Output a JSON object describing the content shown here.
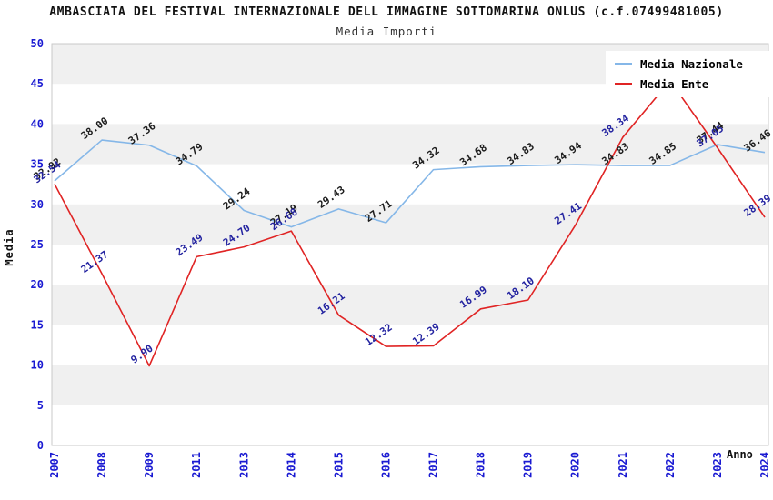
{
  "chart_data": {
    "type": "line",
    "title": "AMBASCIATA DEL FESTIVAL INTERNAZIONALE DELL IMMAGINE SOTTOMARINA ONLUS (c.f.07499481005)",
    "subtitle": "Media Importi",
    "xlabel": "Anno",
    "ylabel": "Media",
    "ylim": [
      0,
      50
    ],
    "y_ticks": [
      0,
      5,
      10,
      15,
      20,
      25,
      30,
      35,
      40,
      45,
      50
    ],
    "categories": [
      "2007",
      "2008",
      "2009",
      "2011",
      "2013",
      "2014",
      "2015",
      "2016",
      "2017",
      "2018",
      "2019",
      "2020",
      "2021",
      "2022",
      "2023",
      "2024"
    ],
    "series": [
      {
        "name": "Media Nazionale",
        "color": "#85b7e8",
        "label_color": "#1c1c1c",
        "values": [
          32.92,
          38.0,
          37.36,
          34.79,
          29.24,
          27.19,
          29.43,
          27.71,
          34.32,
          34.68,
          34.83,
          34.94,
          34.83,
          34.85,
          37.44,
          36.46
        ],
        "labels": [
          "32.92",
          "38.00",
          "37.36",
          "34.79",
          "29.24",
          "27.19",
          "29.43",
          "27.71",
          "34.32",
          "34.68",
          "34.83",
          "34.94",
          "34.83",
          "34.85",
          "37.44",
          "36.46"
        ]
      },
      {
        "name": "Media Ente",
        "color": "#e02424",
        "label_color": "#2323a0",
        "values": [
          32.54,
          21.37,
          9.9,
          23.49,
          24.7,
          26.68,
          16.21,
          12.32,
          12.39,
          16.99,
          18.1,
          27.41,
          38.34,
          45.4,
          37.05,
          28.39
        ],
        "labels": [
          "32.54",
          "21.37",
          "9.90",
          "23.49",
          "24.70",
          "26.68",
          "16.21",
          "12.32",
          "12.39",
          "16.99",
          "18.10",
          "27.41",
          "38.34",
          null,
          "37.05",
          "28.39"
        ]
      }
    ],
    "legend_position": "top-right",
    "grid": "alternating horizontal bands every 5 units",
    "band_color": "#f0f0f0",
    "tick_color": "#1a1ad2",
    "axis_border_color": "#c9c9c9"
  }
}
